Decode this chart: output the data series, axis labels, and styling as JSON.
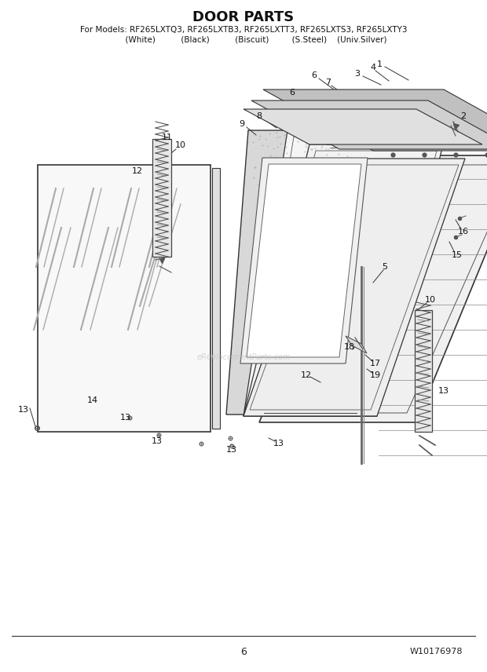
{
  "title": "DOOR PARTS",
  "subtitle_line1": "For Models: RF265LXTQ3, RF265LXTB3, RF265LXTT3, RF265LXTS3, RF265LXTY3",
  "subtitle_line2": "          (White)          (Black)          (Biscuit)         (S.Steel)    (Univ.Silver)",
  "page_number": "6",
  "part_number": "W10176978",
  "watermark": "eReplacementParts.com",
  "bg": "#ffffff",
  "lc": "#333333",
  "title_fs": 13,
  "sub_fs": 7.5,
  "label_fs": 8
}
